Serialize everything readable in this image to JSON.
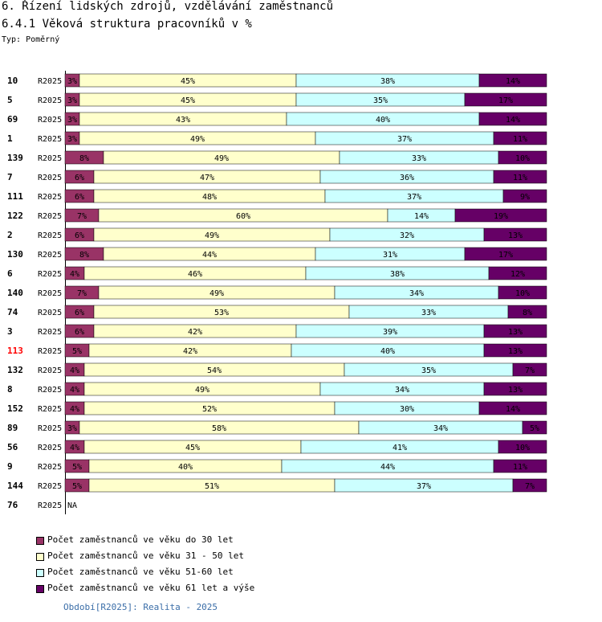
{
  "header": {
    "title": "6. Řízení lidských zdrojů, vzdělávání zaměstnanců",
    "subtitle": "6.4.1 Věková struktura pracovníků v %",
    "typ": "Typ: Poměrný"
  },
  "chart_data": {
    "type": "bar",
    "orientation": "horizontal",
    "stacked": true,
    "title": "6.4.1 Věková struktura pracovníků v %",
    "xlim": [
      0,
      100
    ],
    "categories": [
      "10",
      "5",
      "69",
      "1",
      "139",
      "7",
      "111",
      "122",
      "2",
      "130",
      "6",
      "140",
      "74",
      "3",
      "113",
      "132",
      "8",
      "152",
      "89",
      "56",
      "9",
      "144",
      "76"
    ],
    "period_labels": [
      "R2025",
      "R2025",
      "R2025",
      "R2025",
      "R2025",
      "R2025",
      "R2025",
      "R2025",
      "R2025",
      "R2025",
      "R2025",
      "R2025",
      "R2025",
      "R2025",
      "R2025",
      "R2025",
      "R2025",
      "R2025",
      "R2025",
      "R2025",
      "R2025",
      "R2025",
      "R2025"
    ],
    "highlight_category": "113",
    "highlight_color": "#ff0000",
    "na_label": "NA",
    "value_suffix": "%",
    "series": [
      {
        "name": "Počet zaměstnanců ve věku do 30 let",
        "color": "#993366",
        "values": [
          3,
          3,
          3,
          3,
          8,
          6,
          6,
          7,
          6,
          8,
          4,
          7,
          6,
          6,
          5,
          4,
          4,
          4,
          3,
          4,
          5,
          5,
          null
        ]
      },
      {
        "name": "Počet zaměstnanců ve věku 31 - 50 let",
        "color": "#ffffcc",
        "values": [
          45,
          45,
          43,
          49,
          49,
          47,
          48,
          60,
          49,
          44,
          46,
          49,
          53,
          42,
          42,
          54,
          49,
          52,
          58,
          45,
          40,
          51,
          null
        ]
      },
      {
        "name": "Počet zaměstnanců ve věku 51-60 let",
        "color": "#ccffff",
        "values": [
          38,
          35,
          40,
          37,
          33,
          36,
          37,
          14,
          32,
          31,
          38,
          34,
          33,
          39,
          40,
          35,
          34,
          30,
          34,
          41,
          44,
          37,
          null
        ]
      },
      {
        "name": "Počet zaměstnanců ve věku 61 let a výše",
        "color": "#660066",
        "values": [
          14,
          17,
          14,
          11,
          10,
          11,
          9,
          19,
          13,
          17,
          12,
          10,
          8,
          13,
          13,
          7,
          13,
          14,
          5,
          10,
          11,
          7,
          null
        ]
      }
    ]
  },
  "footer": {
    "period": "Období[R2025]: Realita - 2025"
  }
}
